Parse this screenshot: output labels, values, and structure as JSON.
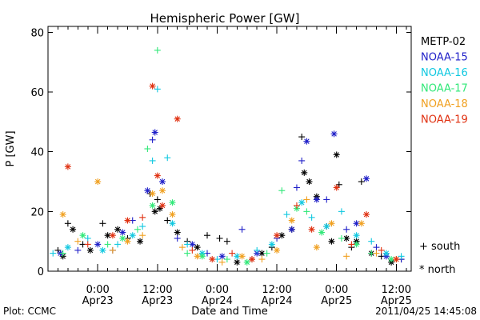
{
  "chart_data": {
    "type": "scatter",
    "title": "Hemispheric Power [GW]",
    "xlabel": "Date and Time",
    "ylabel": "P [GW]",
    "ylim": [
      0,
      82
    ],
    "xlim": [
      "2011-04-22 14:00",
      "2011-04-25 15:00"
    ],
    "y_ticks": [
      0,
      20,
      40,
      60,
      80
    ],
    "x_ticks": [
      {
        "time": "2011-04-23 00:00",
        "label": "0:00",
        "date": "Apr23"
      },
      {
        "time": "2011-04-23 12:00",
        "label": "12:00",
        "date": "Apr23"
      },
      {
        "time": "2011-04-24 00:00",
        "label": "0:00",
        "date": "Apr24"
      },
      {
        "time": "2011-04-24 12:00",
        "label": "12:00",
        "date": "Apr24"
      },
      {
        "time": "2011-04-25 00:00",
        "label": "0:00",
        "date": "Apr25"
      },
      {
        "time": "2011-04-25 12:00",
        "label": "12:00",
        "date": "Apr25"
      }
    ],
    "marker_legend": [
      {
        "symbol": "+",
        "label": "south"
      },
      {
        "symbol": "*",
        "label": "north"
      }
    ],
    "legend_position": "right",
    "series": [
      {
        "name": "METP-02",
        "color": "#000000",
        "points": [
          [
            "2011-04-22 16:00",
            7.0,
            "+"
          ],
          [
            "2011-04-22 17:00",
            5.0,
            "*"
          ],
          [
            "2011-04-22 18:00",
            16.0,
            "+"
          ],
          [
            "2011-04-22 19:00",
            14.0,
            "*"
          ],
          [
            "2011-04-22 21:00",
            9.0,
            "+"
          ],
          [
            "2011-04-22 22:30",
            7.0,
            "*"
          ],
          [
            "2011-04-23 01:00",
            16.0,
            "+"
          ],
          [
            "2011-04-23 02:00",
            12.0,
            "*"
          ],
          [
            "2011-04-23 04:00",
            14.0,
            "*"
          ],
          [
            "2011-04-23 06:00",
            11.0,
            "+"
          ],
          [
            "2011-04-23 08:30",
            10.0,
            "*"
          ],
          [
            "2011-04-23 10:30",
            26.0,
            "+"
          ],
          [
            "2011-04-23 11:30",
            20.0,
            "*"
          ],
          [
            "2011-04-23 12:00",
            24.0,
            "+"
          ],
          [
            "2011-04-23 12:30",
            21.0,
            "*"
          ],
          [
            "2011-04-23 14:00",
            17.0,
            "+"
          ],
          [
            "2011-04-23 16:00",
            13.0,
            "*"
          ],
          [
            "2011-04-23 18:00",
            10.0,
            "+"
          ],
          [
            "2011-04-23 20:00",
            8.0,
            "*"
          ],
          [
            "2011-04-23 22:00",
            12.0,
            "+"
          ],
          [
            "2011-04-24 00:30",
            11.0,
            "+"
          ],
          [
            "2011-04-24 02:00",
            10.0,
            "+"
          ],
          [
            "2011-04-24 04:00",
            3.0,
            "*"
          ],
          [
            "2011-04-24 07:00",
            4.0,
            "+"
          ],
          [
            "2011-04-24 09:00",
            6.0,
            "*"
          ],
          [
            "2011-04-24 11:00",
            8.0,
            "+"
          ],
          [
            "2011-04-24 13:00",
            12.0,
            "*"
          ],
          [
            "2011-04-24 15:00",
            14.0,
            "*"
          ],
          [
            "2011-04-24 17:00",
            45.0,
            "+"
          ],
          [
            "2011-04-24 17:30",
            33.0,
            "*"
          ],
          [
            "2011-04-24 18:30",
            30.0,
            "*"
          ],
          [
            "2011-04-24 20:00",
            25.0,
            "*"
          ],
          [
            "2011-04-24 22:00",
            15.0,
            "+"
          ],
          [
            "2011-04-24 23:00",
            10.0,
            "*"
          ],
          [
            "2011-04-25 00:00",
            39.0,
            "*"
          ],
          [
            "2011-04-25 00:30",
            29.0,
            "+"
          ],
          [
            "2011-04-25 02:00",
            11.0,
            "*"
          ],
          [
            "2011-04-25 03:00",
            8.0,
            "+"
          ],
          [
            "2011-04-25 04:00",
            10.0,
            "*"
          ],
          [
            "2011-04-25 05:00",
            30.0,
            "+"
          ],
          [
            "2011-04-25 07:00",
            6.0,
            "*"
          ],
          [
            "2011-04-25 09:00",
            5.0,
            "+"
          ],
          [
            "2011-04-25 11:00",
            3.0,
            "*"
          ],
          [
            "2011-04-25 13:00",
            4.0,
            "+"
          ]
        ]
      },
      {
        "name": "NOAA-15",
        "color": "#1f1fc8",
        "points": [
          [
            "2011-04-22 16:30",
            6.0,
            "*"
          ],
          [
            "2011-04-22 20:00",
            7.0,
            "+"
          ],
          [
            "2011-04-23 00:00",
            9.0,
            "*"
          ],
          [
            "2011-04-23 03:00",
            7.0,
            "+"
          ],
          [
            "2011-04-23 05:00",
            13.0,
            "*"
          ],
          [
            "2011-04-23 07:00",
            17.0,
            "+"
          ],
          [
            "2011-04-23 10:00",
            27.0,
            "*"
          ],
          [
            "2011-04-23 11:00",
            44.0,
            "+"
          ],
          [
            "2011-04-23 11:30",
            46.5,
            "*"
          ],
          [
            "2011-04-23 13:00",
            30.0,
            "*"
          ],
          [
            "2011-04-23 16:00",
            11.0,
            "+"
          ],
          [
            "2011-04-23 19:00",
            9.0,
            "*"
          ],
          [
            "2011-04-23 22:00",
            6.0,
            "+"
          ],
          [
            "2011-04-24 01:00",
            5.0,
            "*"
          ],
          [
            "2011-04-24 05:00",
            14.0,
            "+"
          ],
          [
            "2011-04-24 08:00",
            6.0,
            "*"
          ],
          [
            "2011-04-24 12:00",
            11.0,
            "+"
          ],
          [
            "2011-04-24 15:00",
            14.0,
            "*"
          ],
          [
            "2011-04-24 16:00",
            28.0,
            "+"
          ],
          [
            "2011-04-24 17:00",
            37.0,
            "+"
          ],
          [
            "2011-04-24 18:00",
            43.5,
            "*"
          ],
          [
            "2011-04-24 20:00",
            24.0,
            "*"
          ],
          [
            "2011-04-24 22:00",
            24.0,
            "+"
          ],
          [
            "2011-04-24 23:30",
            46.0,
            "*"
          ],
          [
            "2011-04-25 02:00",
            14.0,
            "+"
          ],
          [
            "2011-04-25 04:00",
            16.0,
            "*"
          ],
          [
            "2011-04-25 06:00",
            31.0,
            "*"
          ],
          [
            "2011-04-25 08:00",
            8.0,
            "+"
          ],
          [
            "2011-04-25 10:00",
            5.0,
            "*"
          ],
          [
            "2011-04-25 13:00",
            4.0,
            "+"
          ]
        ]
      },
      {
        "name": "NOAA-16",
        "color": "#10c8e0",
        "points": [
          [
            "2011-04-22 15:00",
            6.0,
            "+"
          ],
          [
            "2011-04-22 18:00",
            8.0,
            "*"
          ],
          [
            "2011-04-22 22:00",
            11.0,
            "+"
          ],
          [
            "2011-04-23 01:00",
            7.0,
            "*"
          ],
          [
            "2011-04-23 04:00",
            9.0,
            "+"
          ],
          [
            "2011-04-23 07:00",
            12.0,
            "*"
          ],
          [
            "2011-04-23 09:00",
            15.0,
            "+"
          ],
          [
            "2011-04-23 11:00",
            37.0,
            "+"
          ],
          [
            "2011-04-23 12:00",
            61.0,
            "+"
          ],
          [
            "2011-04-23 14:00",
            38.0,
            "+"
          ],
          [
            "2011-04-23 15:00",
            16.0,
            "*"
          ],
          [
            "2011-04-23 18:00",
            9.0,
            "+"
          ],
          [
            "2011-04-23 21:00",
            6.0,
            "*"
          ],
          [
            "2011-04-24 00:00",
            4.0,
            "+"
          ],
          [
            "2011-04-24 04:00",
            5.0,
            "*"
          ],
          [
            "2011-04-24 08:00",
            7.0,
            "+"
          ],
          [
            "2011-04-24 11:00",
            9.0,
            "*"
          ],
          [
            "2011-04-24 14:00",
            19.0,
            "+"
          ],
          [
            "2011-04-24 17:00",
            23.0,
            "*"
          ],
          [
            "2011-04-24 19:00",
            18.0,
            "+"
          ],
          [
            "2011-04-24 22:00",
            15.0,
            "*"
          ],
          [
            "2011-04-25 01:00",
            20.0,
            "+"
          ],
          [
            "2011-04-25 04:00",
            12.0,
            "*"
          ],
          [
            "2011-04-25 07:00",
            10.0,
            "+"
          ],
          [
            "2011-04-25 10:00",
            6.0,
            "*"
          ],
          [
            "2011-04-25 13:00",
            5.0,
            "+"
          ]
        ]
      },
      {
        "name": "NOAA-17",
        "color": "#30e878",
        "points": [
          [
            "2011-04-22 17:00",
            6.0,
            "+"
          ],
          [
            "2011-04-22 21:00",
            12.0,
            "*"
          ],
          [
            "2011-04-23 02:00",
            9.0,
            "+"
          ],
          [
            "2011-04-23 05:00",
            11.0,
            "*"
          ],
          [
            "2011-04-23 08:00",
            14.0,
            "+"
          ],
          [
            "2011-04-23 10:00",
            41.0,
            "+"
          ],
          [
            "2011-04-23 11:00",
            22.0,
            "*"
          ],
          [
            "2011-04-23 12:00",
            74.0,
            "+"
          ],
          [
            "2011-04-23 15:00",
            23.0,
            "*"
          ],
          [
            "2011-04-23 18:00",
            6.0,
            "+"
          ],
          [
            "2011-04-23 21:00",
            5.0,
            "*"
          ],
          [
            "2011-04-24 02:00",
            4.0,
            "+"
          ],
          [
            "2011-04-24 06:00",
            3.0,
            "*"
          ],
          [
            "2011-04-24 10:00",
            6.0,
            "+"
          ],
          [
            "2011-04-24 13:00",
            27.0,
            "+"
          ],
          [
            "2011-04-24 16:00",
            21.0,
            "*"
          ],
          [
            "2011-04-24 18:00",
            20.0,
            "+"
          ],
          [
            "2011-04-24 21:00",
            13.0,
            "*"
          ],
          [
            "2011-04-25 01:00",
            11.0,
            "+"
          ],
          [
            "2011-04-25 04:00",
            9.0,
            "*"
          ],
          [
            "2011-04-25 07:00",
            6.0,
            "+"
          ],
          [
            "2011-04-25 11:00",
            4.0,
            "*"
          ]
        ]
      },
      {
        "name": "NOAA-18",
        "color": "#f0a020",
        "points": [
          [
            "2011-04-22 17:00",
            19.0,
            "*"
          ],
          [
            "2011-04-22 20:00",
            10.0,
            "+"
          ],
          [
            "2011-04-23 00:00",
            30.0,
            "*"
          ],
          [
            "2011-04-23 03:00",
            7.0,
            "+"
          ],
          [
            "2011-04-23 06:00",
            10.0,
            "*"
          ],
          [
            "2011-04-23 09:00",
            12.0,
            "+"
          ],
          [
            "2011-04-23 11:00",
            26.0,
            "*"
          ],
          [
            "2011-04-23 13:00",
            27.0,
            "*"
          ],
          [
            "2011-04-23 15:00",
            19.0,
            "*"
          ],
          [
            "2011-04-23 17:00",
            8.0,
            "+"
          ],
          [
            "2011-04-23 20:00",
            5.0,
            "*"
          ],
          [
            "2011-04-24 01:00",
            3.0,
            "+"
          ],
          [
            "2011-04-24 05:00",
            5.0,
            "*"
          ],
          [
            "2011-04-24 09:00",
            4.0,
            "+"
          ],
          [
            "2011-04-24 12:00",
            7.0,
            "*"
          ],
          [
            "2011-04-24 15:00",
            17.0,
            "*"
          ],
          [
            "2011-04-24 18:00",
            24.0,
            "+"
          ],
          [
            "2011-04-24 20:00",
            8.0,
            "*"
          ],
          [
            "2011-04-24 23:00",
            16.0,
            "*"
          ],
          [
            "2011-04-25 02:00",
            5.0,
            "+"
          ],
          [
            "2011-04-25 05:00",
            16.0,
            "*"
          ],
          [
            "2011-04-25 08:00",
            6.0,
            "+"
          ],
          [
            "2011-04-25 12:00",
            4.0,
            "*"
          ]
        ]
      },
      {
        "name": "NOAA-19",
        "color": "#e03010",
        "points": [
          [
            "2011-04-22 18:00",
            35.0,
            "*"
          ],
          [
            "2011-04-22 22:00",
            9.0,
            "+"
          ],
          [
            "2011-04-23 03:00",
            12.0,
            "*"
          ],
          [
            "2011-04-23 06:00",
            17.0,
            "*"
          ],
          [
            "2011-04-23 09:00",
            18.0,
            "+"
          ],
          [
            "2011-04-23 11:00",
            62.0,
            "*"
          ],
          [
            "2011-04-23 12:00",
            32.0,
            "*"
          ],
          [
            "2011-04-23 13:00",
            22.0,
            "*"
          ],
          [
            "2011-04-23 16:00",
            51.0,
            "*"
          ],
          [
            "2011-04-23 19:00",
            7.0,
            "+"
          ],
          [
            "2011-04-23 23:00",
            4.0,
            "*"
          ],
          [
            "2011-04-24 03:00",
            6.0,
            "+"
          ],
          [
            "2011-04-24 07:00",
            4.0,
            "*"
          ],
          [
            "2011-04-24 12:00",
            12.0,
            "*"
          ],
          [
            "2011-04-24 16:00",
            22.0,
            "+"
          ],
          [
            "2011-04-24 19:00",
            14.0,
            "*"
          ],
          [
            "2011-04-25 00:00",
            28.0,
            "*"
          ],
          [
            "2011-04-25 03:00",
            9.0,
            "+"
          ],
          [
            "2011-04-25 06:00",
            19.0,
            "*"
          ],
          [
            "2011-04-25 09:00",
            7.0,
            "+"
          ],
          [
            "2011-04-25 12:00",
            4.0,
            "*"
          ]
        ]
      }
    ]
  },
  "footer": {
    "plot_credit": "Plot: CCMC",
    "timestamp": "2011/04/25 14:45:08"
  }
}
